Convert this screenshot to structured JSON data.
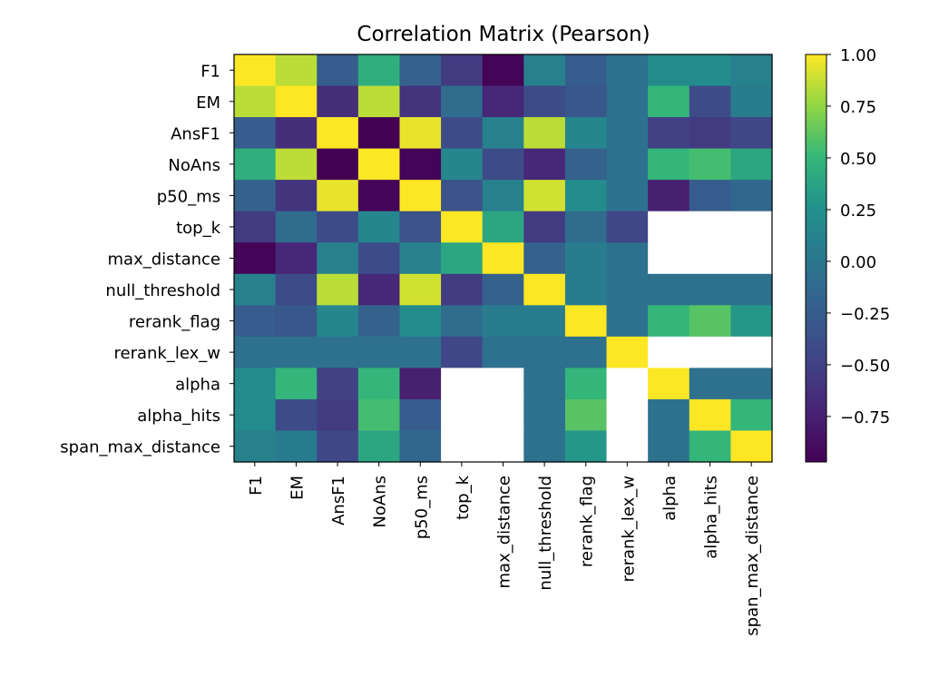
{
  "chart_data": {
    "type": "heatmap",
    "title": "Correlation Matrix (Pearson)",
    "row_labels": [
      "F1",
      "EM",
      "AnsF1",
      "NoAns",
      "p50_ms",
      "top_k",
      "max_distance",
      "null_threshold",
      "rerank_flag",
      "rerank_lex_w",
      "alpha",
      "alpha_hits",
      "span_max_distance"
    ],
    "col_labels": [
      "F1",
      "EM",
      "AnsF1",
      "NoAns",
      "p50_ms",
      "top_k",
      "max_distance",
      "null_threshold",
      "rerank_flag",
      "rerank_lex_w",
      "alpha",
      "alpha_hits",
      "span_max_distance"
    ],
    "values": [
      [
        1.0,
        0.85,
        -0.25,
        0.45,
        -0.2,
        -0.55,
        -0.95,
        0.1,
        -0.25,
        -0.05,
        0.2,
        0.2,
        0.1
      ],
      [
        0.85,
        1.0,
        -0.65,
        0.85,
        -0.6,
        -0.1,
        -0.7,
        -0.4,
        -0.3,
        -0.05,
        0.5,
        -0.4,
        0.05
      ],
      [
        -0.25,
        -0.65,
        1.0,
        -0.97,
        0.95,
        -0.4,
        0.1,
        0.85,
        0.15,
        -0.05,
        -0.5,
        -0.55,
        -0.45
      ],
      [
        0.45,
        0.85,
        -0.97,
        1.0,
        -0.95,
        0.15,
        -0.4,
        -0.7,
        -0.2,
        -0.05,
        0.5,
        0.55,
        0.4
      ],
      [
        -0.2,
        -0.6,
        0.95,
        -0.95,
        1.0,
        -0.35,
        0.1,
        0.9,
        0.2,
        -0.05,
        -0.75,
        -0.25,
        -0.15
      ],
      [
        -0.55,
        -0.1,
        -0.4,
        0.15,
        -0.35,
        1.0,
        0.4,
        -0.55,
        -0.1,
        -0.45,
        null,
        null,
        null
      ],
      [
        -0.95,
        -0.7,
        0.1,
        -0.4,
        0.1,
        0.4,
        1.0,
        -0.2,
        0.05,
        -0.05,
        null,
        null,
        null
      ],
      [
        0.1,
        -0.4,
        0.85,
        -0.7,
        0.9,
        -0.55,
        -0.2,
        1.0,
        0.05,
        -0.05,
        -0.05,
        -0.05,
        -0.05
      ],
      [
        -0.25,
        -0.3,
        0.15,
        -0.2,
        0.2,
        -0.1,
        0.05,
        0.05,
        1.0,
        -0.05,
        0.5,
        0.6,
        0.3
      ],
      [
        -0.05,
        -0.05,
        -0.05,
        -0.05,
        -0.05,
        -0.45,
        -0.05,
        -0.05,
        -0.05,
        1.0,
        null,
        null,
        null
      ],
      [
        0.2,
        0.5,
        -0.5,
        0.5,
        -0.75,
        null,
        null,
        -0.05,
        0.5,
        null,
        1.0,
        -0.05,
        -0.05
      ],
      [
        0.2,
        -0.4,
        -0.55,
        0.55,
        -0.25,
        null,
        null,
        -0.05,
        0.6,
        null,
        -0.05,
        1.0,
        0.5
      ],
      [
        0.1,
        0.05,
        -0.45,
        0.4,
        -0.15,
        null,
        null,
        -0.05,
        0.3,
        null,
        -0.05,
        0.5,
        1.0
      ]
    ],
    "colormap": "viridis",
    "colorbar": {
      "vmin": -0.97,
      "vmax": 1.0,
      "ticks": [
        1.0,
        0.75,
        0.5,
        0.25,
        0.0,
        -0.25,
        -0.5,
        -0.75
      ],
      "tick_labels": [
        "1.00",
        "0.75",
        "0.50",
        "0.25",
        "0.00",
        "−0.25",
        "−0.50",
        "−0.75"
      ]
    },
    "missing_color": "#ffffff"
  }
}
